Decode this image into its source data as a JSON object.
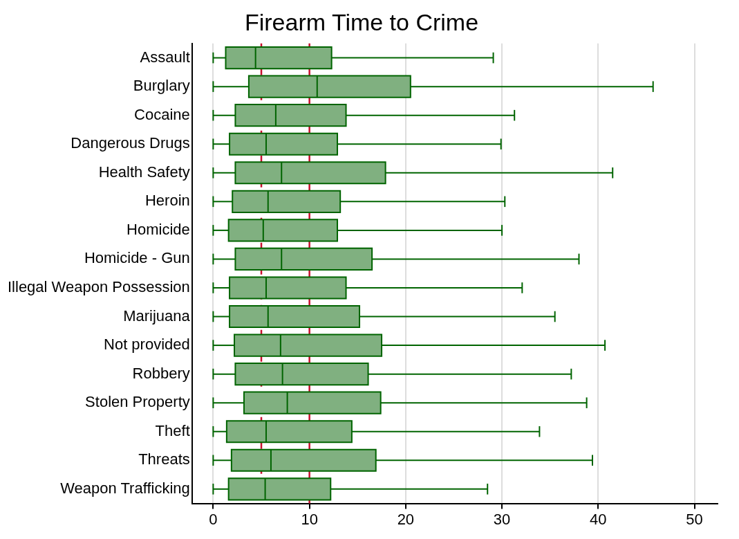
{
  "chart_data": {
    "type": "box",
    "title": "Firearm Time to Crime",
    "orientation": "horizontal",
    "categories": [
      "Assault",
      "Burglary",
      "Cocaine",
      "Dangerous Drugs",
      "Health Safety",
      "Heroin",
      "Homicide",
      "Homicide - Gun",
      "Illegal Weapon Possession",
      "Marijuana",
      "Not provided",
      "Robbery",
      "Stolen Property",
      "Theft",
      "Threats",
      "Weapon Trafficking"
    ],
    "color": "#80b080",
    "boxes": [
      {
        "low": 0,
        "q1": 1.3,
        "median": 4.4,
        "q3": 12.3,
        "high": 29.1
      },
      {
        "low": 0,
        "q1": 3.7,
        "median": 10.8,
        "q3": 20.5,
        "high": 45.7
      },
      {
        "low": 0,
        "q1": 2.3,
        "median": 6.5,
        "q3": 13.8,
        "high": 31.3
      },
      {
        "low": 0,
        "q1": 1.7,
        "median": 5.5,
        "q3": 12.9,
        "high": 29.9
      },
      {
        "low": 0,
        "q1": 2.3,
        "median": 7.1,
        "q3": 17.9,
        "high": 41.5
      },
      {
        "low": 0,
        "q1": 2.0,
        "median": 5.7,
        "q3": 13.2,
        "high": 30.3
      },
      {
        "low": 0,
        "q1": 1.6,
        "median": 5.2,
        "q3": 12.9,
        "high": 30.0
      },
      {
        "low": 0,
        "q1": 2.3,
        "median": 7.1,
        "q3": 16.5,
        "high": 38.0
      },
      {
        "low": 0,
        "q1": 1.7,
        "median": 5.5,
        "q3": 13.8,
        "high": 32.1
      },
      {
        "low": 0,
        "q1": 1.7,
        "median": 5.7,
        "q3": 15.2,
        "high": 35.5
      },
      {
        "low": 0,
        "q1": 2.2,
        "median": 7.0,
        "q3": 17.5,
        "high": 40.7
      },
      {
        "low": 0,
        "q1": 2.3,
        "median": 7.2,
        "q3": 16.1,
        "high": 37.2
      },
      {
        "low": 0,
        "q1": 3.2,
        "median": 7.7,
        "q3": 17.4,
        "high": 38.8
      },
      {
        "low": 0,
        "q1": 1.4,
        "median": 5.5,
        "q3": 14.4,
        "high": 33.9
      },
      {
        "low": 0,
        "q1": 1.9,
        "median": 6.0,
        "q3": 16.9,
        "high": 39.4
      },
      {
        "low": 0,
        "q1": 1.6,
        "median": 5.4,
        "q3": 12.2,
        "high": 28.5
      }
    ],
    "xlim": [
      -2.2,
      52.4
    ],
    "xticks": [
      0,
      10,
      20,
      30,
      40,
      50
    ],
    "grid": "x",
    "ref_lines": [
      {
        "axis": "x",
        "value": 5,
        "color": "#c8102e",
        "line_style": "dashed"
      },
      {
        "axis": "x",
        "value": 10,
        "color": "#c8102e",
        "line_style": "solid"
      }
    ]
  }
}
